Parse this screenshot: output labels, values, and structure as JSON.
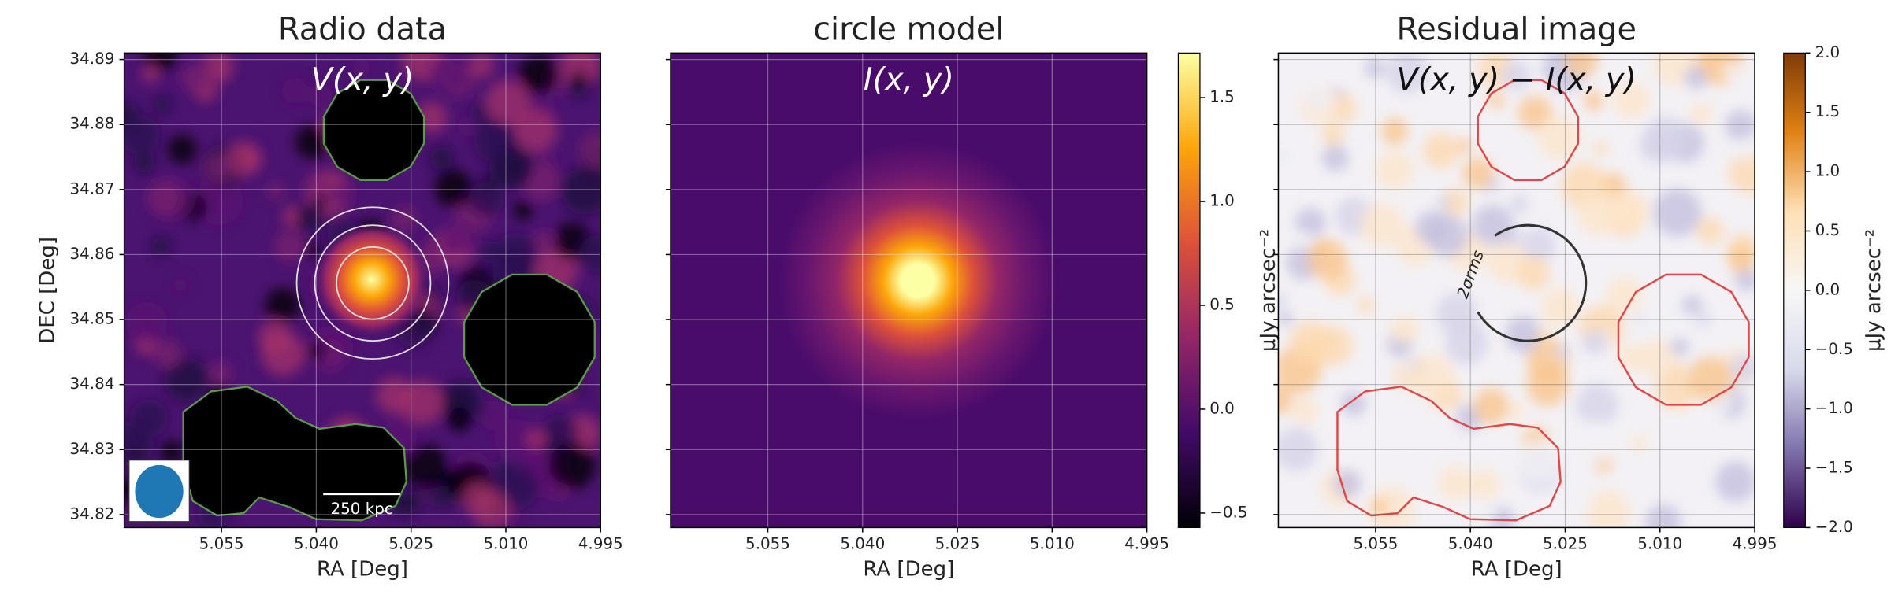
{
  "chart_data": [
    {
      "type": "image",
      "title": "Radio data",
      "annotation": "V(x, y)",
      "xlabel": "RA [Deg]",
      "ylabel": "DEC [Deg]",
      "xlim": [
        5.0704,
        4.995
      ],
      "ylim": [
        34.818,
        34.891
      ],
      "xticks": [
        {
          "value": 5.055,
          "label": "5.055"
        },
        {
          "value": 5.04,
          "label": "5.040"
        },
        {
          "value": 5.025,
          "label": "5.025"
        },
        {
          "value": 5.01,
          "label": "5.010"
        },
        {
          "value": 4.995,
          "label": "4.995"
        }
      ],
      "yticks": [
        34.82,
        34.83,
        34.84,
        34.85,
        34.86,
        34.87,
        34.88,
        34.89
      ],
      "ytick_labels": true,
      "grid": true,
      "grid_color": "#ffffff",
      "scalebar": "250 kpc"
    },
    {
      "type": "image",
      "title": "circle model",
      "annotation": "I(x, y)",
      "xlabel": "RA [Deg]",
      "xlim": [
        5.0704,
        4.995
      ],
      "ylim": [
        34.818,
        34.891
      ],
      "xticks": [
        {
          "value": 5.055,
          "label": "5.055"
        },
        {
          "value": 5.04,
          "label": "5.040"
        },
        {
          "value": 5.025,
          "label": "5.025"
        },
        {
          "value": 5.01,
          "label": "5.010"
        },
        {
          "value": 4.995,
          "label": "4.995"
        }
      ],
      "yticks": [
        34.82,
        34.83,
        34.84,
        34.85,
        34.86,
        34.87,
        34.88,
        34.89
      ],
      "ytick_labels": false,
      "grid": true,
      "grid_color": "#ffffff",
      "colorbar": {
        "label": "μJy arcsec⁻²",
        "lim": [
          -0.57,
          1.715
        ],
        "ticks": [
          {
            "value": -0.5,
            "label": "−0.5"
          },
          {
            "value": 0,
            "label": "0.0"
          },
          0.5,
          {
            "value": 1,
            "label": "1.0"
          },
          1.5
        ],
        "colors": [
          "#000004",
          "#420a68",
          "#932667",
          "#dd513a",
          "#fca50a",
          "#fcffa4"
        ]
      }
    },
    {
      "type": "image",
      "title": "Residual image",
      "annotation": "V(x, y) − I(x, y)",
      "xlabel": "RA [Deg]",
      "xlim": [
        5.0704,
        4.995
      ],
      "ylim": [
        34.818,
        34.891
      ],
      "xticks": [
        {
          "value": 5.055,
          "label": "5.055"
        },
        {
          "value": 5.04,
          "label": "5.040"
        },
        {
          "value": 5.025,
          "label": "5.025"
        },
        {
          "value": 5.01,
          "label": "5.010"
        },
        {
          "value": 4.995,
          "label": "4.995"
        }
      ],
      "yticks": [
        34.82,
        34.83,
        34.84,
        34.85,
        34.86,
        34.87,
        34.88,
        34.89
      ],
      "ytick_labels": false,
      "grid": true,
      "grid_color": "#555555",
      "circle_label": "2σrms",
      "colorbar": {
        "label": "μJy arcsec⁻²",
        "lim": [
          -2,
          2
        ],
        "ticks": [
          {
            "value": -2,
            "label": "−2.0"
          },
          {
            "value": -1.5,
            "label": "−1.5"
          },
          {
            "value": -1,
            "label": "−1.0"
          },
          {
            "value": -0.5,
            "label": "−0.5"
          },
          {
            "value": 0,
            "label": "0.0"
          },
          0.5,
          {
            "value": 1,
            "label": "1.0"
          },
          1.5,
          {
            "value": 2,
            "label": "2.0"
          }
        ],
        "colors": [
          "#2d004b",
          "#8073ac",
          "#d8daeb",
          "#f7f7f7",
          "#fee0b6",
          "#e08214",
          "#7f3b08"
        ]
      }
    }
  ]
}
